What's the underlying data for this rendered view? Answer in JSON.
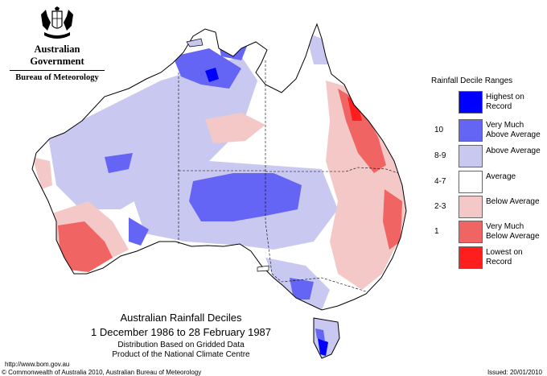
{
  "header": {
    "agency_line1": "Australian Government",
    "agency_line2": "Bureau of Meteorology",
    "crest_icon": "commonwealth-coat-of-arms"
  },
  "map": {
    "region": "Australia",
    "colors": {
      "highest_on_record": "#0000ff",
      "very_much_above_average": "#6464f5",
      "above_average": "#c8c8f0",
      "average": "#ffffff",
      "below_average": "#f5c8c8",
      "very_much_below_average": "#f06464",
      "lowest_on_record": "#ff1e1e"
    }
  },
  "legend": {
    "title": "Rainfall Decile Ranges",
    "items": [
      {
        "decile": "",
        "label": "Highest on Record",
        "color": "#0000ff"
      },
      {
        "decile": "10",
        "label": "Very Much Above Average",
        "color": "#6464f5"
      },
      {
        "decile": "8-9",
        "label": "Above Average",
        "color": "#c8c8f0"
      },
      {
        "decile": "4-7",
        "label": "Average",
        "color": "#ffffff"
      },
      {
        "decile": "2-3",
        "label": "Below Average",
        "color": "#f5c8c8"
      },
      {
        "decile": "1",
        "label": "Very Much Below Average",
        "color": "#f06464"
      },
      {
        "decile": "",
        "label": "Lowest on Record",
        "color": "#ff1e1e"
      }
    ]
  },
  "caption": {
    "title": "Australian Rainfall Deciles",
    "period": "1 December 1986 to 28 February 1987",
    "basis": "Distribution Based on Gridded Data",
    "product": "Product of the National Climate Centre"
  },
  "footer": {
    "url": "http://www.bom.gov.au",
    "copyright": "© Commonwealth of Australia 2010, Australian Bureau of Meteorology",
    "issued": "Issued: 20/01/2010"
  }
}
